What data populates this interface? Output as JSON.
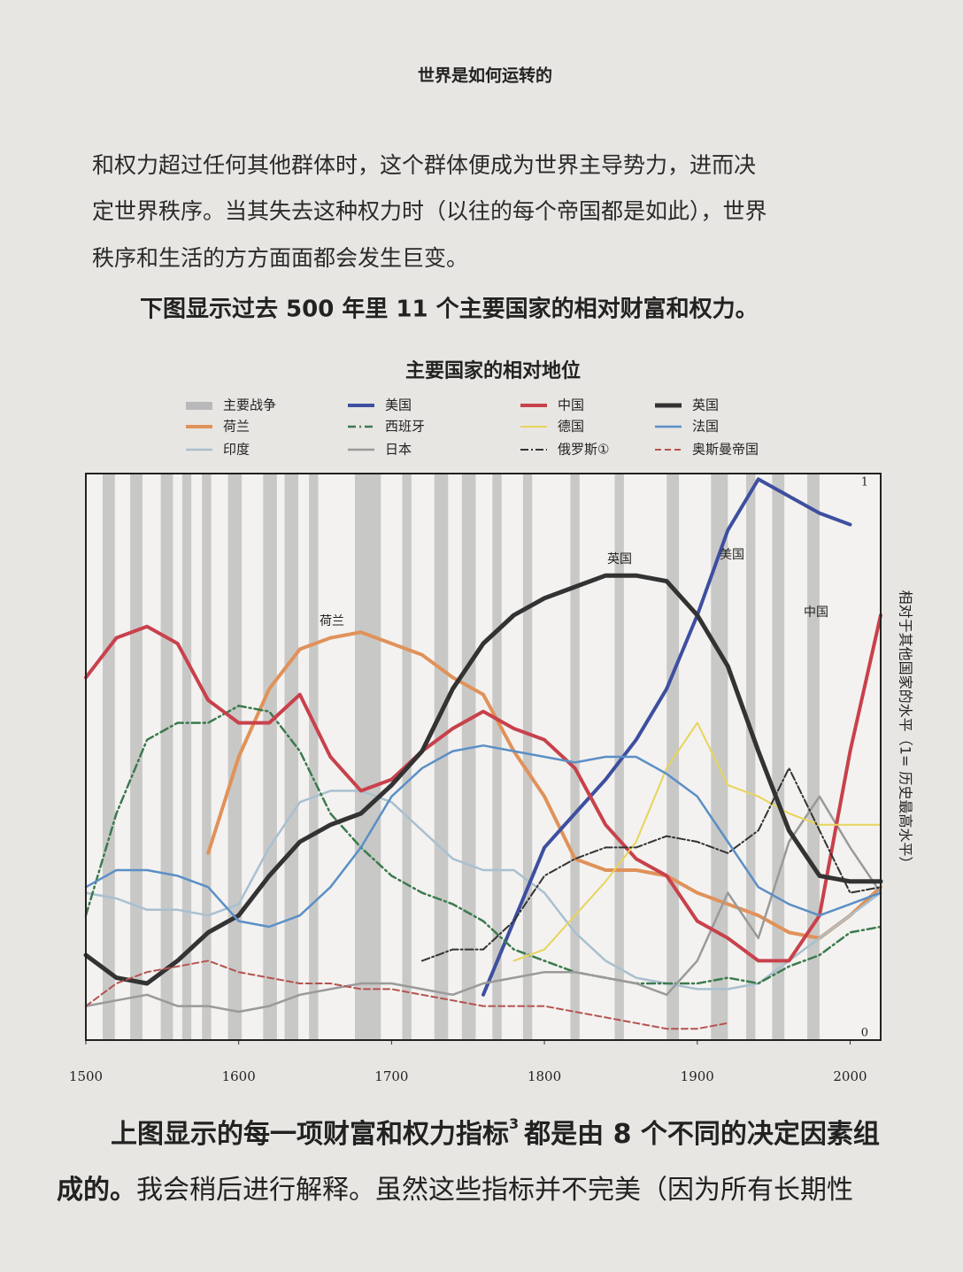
{
  "page": {
    "header": "世界是如何运转的",
    "paragraph": [
      "和权力超过任何其他群体时，这个群体便成为世界主导势力，进而决",
      "定世界秩序。当其失去这种权力时（以往的每个帝国都是如此），世界",
      "秩序和生活的方方面面都会发生巨变。"
    ],
    "caption": "下图显示过去 500 年里 11 个主要国家的相对财富和权力。",
    "footer_line1_a": "上图显示的每一项财富和权力指标",
    "footer_sup": "3",
    "footer_line1_b": "都是由 8 个不同的决定因素组",
    "footer_line2_a": "成的。",
    "footer_line2_b": "我会稍后进行解释。虽然这些指标并不完美（因为所有长期性"
  },
  "chart_data": {
    "type": "line",
    "title": "主要国家的相对地位",
    "y_label": "相对于其他国家的水平（1= 历史最高水平）",
    "war_label": "主要战争",
    "war_color": "#b9b9b9",
    "war_periods": [
      [
        1511,
        1519
      ],
      [
        1529,
        1537
      ],
      [
        1549,
        1557
      ],
      [
        1563,
        1569
      ],
      [
        1576,
        1582
      ],
      [
        1593,
        1602
      ],
      [
        1616,
        1625
      ],
      [
        1630,
        1639
      ],
      [
        1646,
        1652
      ],
      [
        1676,
        1693
      ],
      [
        1707,
        1713
      ],
      [
        1728,
        1737
      ],
      [
        1746,
        1755
      ],
      [
        1766,
        1772
      ],
      [
        1786,
        1792
      ],
      [
        1817,
        1823
      ],
      [
        1846,
        1852
      ],
      [
        1880,
        1888
      ],
      [
        1909,
        1920
      ],
      [
        1932,
        1938
      ],
      [
        1949,
        1957
      ],
      [
        1972,
        1980
      ]
    ],
    "annotations": [
      "荷兰",
      "英国",
      "美国",
      "中国"
    ],
    "x": [
      1500,
      1520,
      1540,
      1560,
      1580,
      1600,
      1620,
      1640,
      1660,
      1680,
      1700,
      1720,
      1740,
      1760,
      1780,
      1800,
      1820,
      1840,
      1860,
      1880,
      1900,
      1920,
      1940,
      1960,
      1980,
      2000,
      2020
    ],
    "xlim": [
      1500,
      2020
    ],
    "xticks": [
      1500,
      1600,
      1700,
      1800,
      1900,
      2000
    ],
    "ylim": [
      0,
      1
    ],
    "yticks": [
      0,
      1
    ],
    "series": [
      {
        "name": "荷兰",
        "color": "#e0925a",
        "width": 4,
        "dash": "none",
        "values": [
          null,
          null,
          null,
          null,
          0.33,
          0.5,
          0.62,
          0.69,
          0.71,
          0.72,
          0.7,
          0.68,
          0.64,
          0.61,
          0.51,
          0.43,
          0.32,
          0.3,
          0.3,
          0.29,
          0.26,
          0.24,
          0.22,
          0.19,
          0.18,
          0.22,
          0.27
        ]
      },
      {
        "name": "印度",
        "color": "#a9c0cf",
        "width": 2.5,
        "dash": "none",
        "values": [
          0.26,
          0.25,
          0.23,
          0.23,
          0.22,
          0.24,
          0.34,
          0.42,
          0.44,
          0.44,
          0.42,
          0.37,
          0.32,
          0.3,
          0.3,
          0.26,
          0.19,
          0.14,
          0.11,
          0.1,
          0.09,
          0.09,
          0.1,
          0.14,
          0.18,
          0.22,
          0.26
        ]
      },
      {
        "name": "美国",
        "color": "#3e4fa0",
        "width": 4,
        "dash": "none",
        "values": [
          null,
          null,
          null,
          null,
          null,
          null,
          null,
          null,
          null,
          null,
          null,
          null,
          null,
          0.08,
          0.21,
          0.34,
          0.4,
          0.46,
          0.53,
          0.62,
          0.75,
          0.9,
          0.99,
          0.96,
          0.93,
          0.91,
          null
        ]
      },
      {
        "name": "西班牙",
        "color": "#3c7a4e",
        "width": 2.5,
        "dash": "9 4 2 4",
        "values": [
          0.22,
          0.4,
          0.53,
          0.56,
          0.56,
          0.59,
          0.58,
          0.51,
          0.4,
          0.34,
          0.29,
          0.26,
          0.24,
          0.21,
          0.16,
          0.14,
          0.12,
          0.11,
          0.1,
          0.1,
          0.1,
          0.11,
          0.1,
          0.13,
          0.15,
          0.19,
          0.2
        ]
      },
      {
        "name": "日本",
        "color": "#9a9a9a",
        "width": 2.5,
        "dash": "none",
        "values": [
          0.06,
          0.07,
          0.08,
          0.06,
          0.06,
          0.05,
          0.06,
          0.08,
          0.09,
          0.1,
          0.1,
          0.09,
          0.08,
          0.1,
          0.11,
          0.12,
          0.12,
          0.11,
          0.1,
          0.08,
          0.14,
          0.26,
          0.18,
          0.35,
          0.43,
          0.34,
          0.26
        ]
      },
      {
        "name": "中国",
        "color": "#c8414b",
        "width": 4,
        "dash": "none",
        "values": [
          0.64,
          0.71,
          0.73,
          0.7,
          0.6,
          0.56,
          0.56,
          0.61,
          0.5,
          0.44,
          0.46,
          0.51,
          0.55,
          0.58,
          0.55,
          0.53,
          0.48,
          0.38,
          0.32,
          0.29,
          0.21,
          0.18,
          0.14,
          0.14,
          0.22,
          0.51,
          0.75
        ]
      },
      {
        "name": "德国",
        "color": "#e8d45a",
        "width": 2,
        "dash": "none",
        "values": [
          null,
          null,
          null,
          null,
          null,
          null,
          null,
          null,
          null,
          null,
          null,
          null,
          null,
          null,
          0.14,
          0.16,
          0.22,
          0.28,
          0.35,
          0.48,
          0.56,
          0.45,
          0.43,
          0.4,
          0.38,
          0.38,
          0.38
        ]
      },
      {
        "name": "俄罗斯①",
        "color": "#333333",
        "width": 2,
        "dash": "9 3 2 3",
        "values": [
          null,
          null,
          null,
          null,
          null,
          null,
          null,
          null,
          null,
          null,
          null,
          0.14,
          0.16,
          0.16,
          0.21,
          0.29,
          0.32,
          0.34,
          0.34,
          0.36,
          0.35,
          0.33,
          0.37,
          0.48,
          0.37,
          0.26,
          0.27
        ]
      },
      {
        "name": "英国",
        "color": "#333333",
        "width": 5,
        "dash": "none",
        "values": [
          0.15,
          0.11,
          0.1,
          0.14,
          0.19,
          0.22,
          0.29,
          0.35,
          0.38,
          0.4,
          0.45,
          0.51,
          0.62,
          0.7,
          0.75,
          0.78,
          0.8,
          0.82,
          0.82,
          0.81,
          0.75,
          0.66,
          0.51,
          0.37,
          0.29,
          0.28,
          0.28
        ]
      },
      {
        "name": "法国",
        "color": "#5b8fc6",
        "width": 2.5,
        "dash": "none",
        "values": [
          0.27,
          0.3,
          0.3,
          0.29,
          0.27,
          0.21,
          0.2,
          0.22,
          0.27,
          0.34,
          0.43,
          0.48,
          0.51,
          0.52,
          0.51,
          0.5,
          0.49,
          0.5,
          0.5,
          0.47,
          0.43,
          0.35,
          0.27,
          0.24,
          0.22,
          0.24,
          0.26
        ]
      },
      {
        "name": "奥斯曼帝国",
        "color": "#b5534f",
        "width": 2,
        "dash": "7 4",
        "values": [
          0.06,
          0.1,
          0.12,
          0.13,
          0.14,
          0.12,
          0.11,
          0.1,
          0.1,
          0.09,
          0.09,
          0.08,
          0.07,
          0.06,
          0.06,
          0.06,
          0.05,
          0.04,
          0.03,
          0.02,
          0.02,
          0.03,
          null,
          null,
          null,
          null,
          null
        ]
      }
    ]
  }
}
